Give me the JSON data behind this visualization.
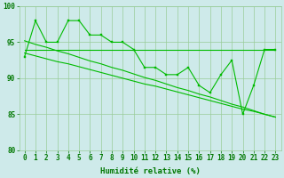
{
  "x": [
    0,
    1,
    2,
    3,
    4,
    5,
    6,
    7,
    8,
    9,
    10,
    11,
    12,
    13,
    14,
    15,
    16,
    17,
    18,
    19,
    20,
    21,
    22,
    23
  ],
  "line_jagged": [
    93,
    98,
    95,
    95,
    98,
    98,
    96,
    96,
    95,
    95,
    94,
    91.5,
    91.5,
    90.5,
    90.5,
    91.5,
    89,
    88,
    90.5,
    92.5,
    85,
    89,
    94,
    94
  ],
  "line_flat": [
    94,
    94,
    94,
    94,
    94,
    94,
    94,
    94,
    94,
    94,
    94,
    94,
    94,
    94,
    94,
    94,
    94,
    94,
    94,
    94,
    94,
    94,
    94,
    94
  ],
  "line_diag1": [
    95.2,
    94.7,
    94.3,
    93.8,
    93.4,
    92.9,
    92.4,
    92.0,
    91.5,
    91.1,
    90.6,
    90.1,
    89.7,
    89.2,
    88.7,
    88.3,
    87.8,
    87.4,
    86.9,
    86.4,
    86.0,
    85.5,
    85.0,
    84.6
  ],
  "line_diag2": [
    93.5,
    93.1,
    92.7,
    92.3,
    92.0,
    91.6,
    91.2,
    90.8,
    90.4,
    90.0,
    89.6,
    89.2,
    88.9,
    88.5,
    88.1,
    87.7,
    87.3,
    86.9,
    86.5,
    86.1,
    85.7,
    85.4,
    85.0,
    84.6
  ],
  "xlabel": "Humidité relative (%)",
  "ylim": [
    80,
    100
  ],
  "xlim": [
    -0.5,
    23.5
  ],
  "yticks": [
    80,
    85,
    90,
    95,
    100
  ],
  "xticks": [
    0,
    1,
    2,
    3,
    4,
    5,
    6,
    7,
    8,
    9,
    10,
    11,
    12,
    13,
    14,
    15,
    16,
    17,
    18,
    19,
    20,
    21,
    22,
    23
  ],
  "line_color": "#00bb00",
  "bg_color": "#ceeaea",
  "grid_color": "#99cc99",
  "axis_color": "#007700",
  "tick_fontsize": 5.5,
  "xlabel_fontsize": 6.5
}
